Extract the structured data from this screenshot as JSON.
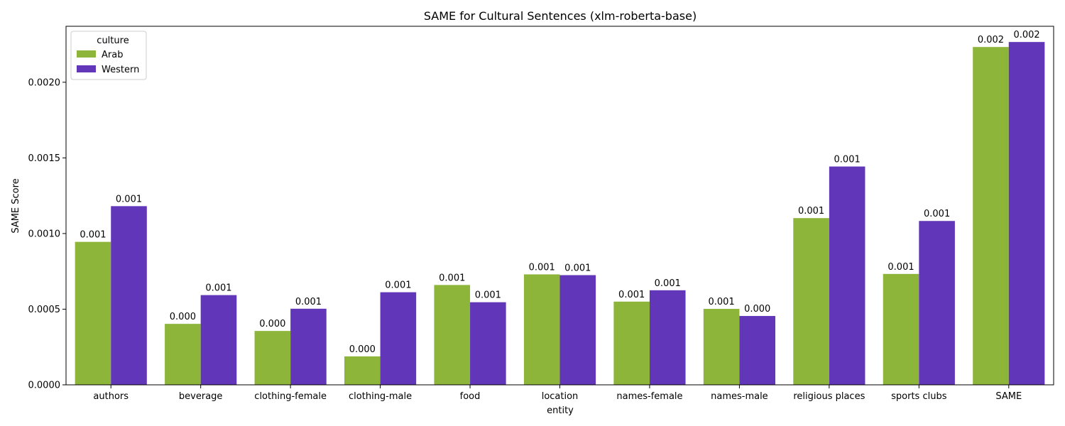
{
  "chart_data": {
    "type": "bar",
    "title": "SAME for Cultural Sentences (xlm-roberta-base)",
    "xlabel": "entity",
    "ylabel": "SAME Score",
    "ylim": [
      0,
      0.00237
    ],
    "yticks": [
      0.0,
      0.0005,
      0.001,
      0.0015,
      0.002
    ],
    "ytick_labels": [
      "0.0000",
      "0.0005",
      "0.0010",
      "0.0015",
      "0.0020"
    ],
    "grid": false,
    "legend": {
      "title": "culture",
      "placement": "top-left"
    },
    "categories": [
      "authors",
      "beverage",
      "clothing-female",
      "clothing-male",
      "food",
      "location",
      "names-female",
      "names-male",
      "religious places",
      "sports clubs",
      "SAME"
    ],
    "series": [
      {
        "name": "Arab",
        "color": "#8db53a",
        "values": [
          0.000945,
          0.000403,
          0.000356,
          0.000188,
          0.00066,
          0.00073,
          0.00055,
          0.000502,
          0.001102,
          0.000733,
          0.002233
        ],
        "labels": [
          "0.001",
          "0.000",
          "0.000",
          "0.000",
          "0.001",
          "0.001",
          "0.001",
          "0.001",
          "0.001",
          "0.001",
          "0.002"
        ]
      },
      {
        "name": "Western",
        "color": "#6236b8",
        "values": [
          0.001181,
          0.000593,
          0.000503,
          0.000612,
          0.000546,
          0.000725,
          0.000625,
          0.000455,
          0.001443,
          0.001083,
          0.002266
        ],
        "labels": [
          "0.001",
          "0.001",
          "0.001",
          "0.001",
          "0.001",
          "0.001",
          "0.001",
          "0.000",
          "0.001",
          "0.001",
          "0.002"
        ]
      }
    ]
  }
}
